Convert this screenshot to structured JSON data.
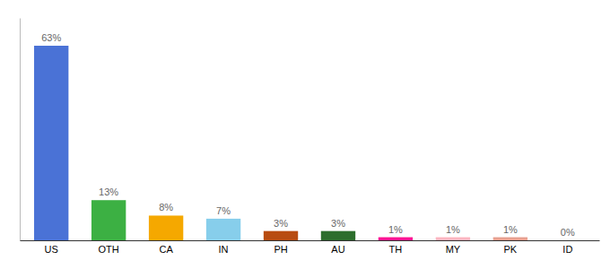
{
  "chart_data": {
    "type": "bar",
    "categories": [
      "US",
      "OTH",
      "CA",
      "IN",
      "PH",
      "AU",
      "TH",
      "MY",
      "PK",
      "ID"
    ],
    "values": [
      63,
      13,
      8,
      7,
      3,
      3,
      1,
      1,
      1,
      0
    ],
    "value_labels": [
      "63%",
      "13%",
      "8%",
      "7%",
      "3%",
      "3%",
      "1%",
      "1%",
      "1%",
      "0%"
    ],
    "colors": [
      "#4a72d6",
      "#3cb043",
      "#f5a800",
      "#87ceeb",
      "#b84c11",
      "#2d6e2d",
      "#ff1493",
      "#ffb6c1",
      "#e8a090",
      "#dddddd"
    ],
    "ylim": [
      0,
      72
    ],
    "data_labels": true,
    "tick_labels": "x",
    "grid": false
  }
}
